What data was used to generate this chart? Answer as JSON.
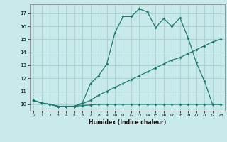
{
  "xlabel": "Humidex (Indice chaleur)",
  "background_color": "#c8eaea",
  "grid_color": "#add4d4",
  "line_color": "#1e7872",
  "xlim": [
    -0.5,
    23.5
  ],
  "ylim": [
    9.5,
    17.7
  ],
  "yticks": [
    10,
    11,
    12,
    13,
    14,
    15,
    16,
    17
  ],
  "xticks": [
    0,
    1,
    2,
    3,
    4,
    5,
    6,
    7,
    8,
    9,
    10,
    11,
    12,
    13,
    14,
    15,
    16,
    17,
    18,
    19,
    20,
    21,
    22,
    23
  ],
  "line1_x": [
    0,
    1,
    2,
    3,
    4,
    5,
    6,
    7,
    8,
    9,
    10,
    11,
    12,
    13,
    14,
    15,
    16,
    17,
    18,
    19,
    20,
    21,
    22,
    23
  ],
  "line1_y": [
    10.3,
    10.1,
    10.0,
    9.85,
    9.85,
    9.85,
    10.1,
    11.6,
    12.2,
    13.1,
    15.5,
    16.75,
    16.75,
    17.35,
    17.1,
    15.9,
    16.6,
    16.0,
    16.65,
    15.1,
    13.2,
    11.8,
    10.0,
    10.0
  ],
  "line2_x": [
    0,
    1,
    2,
    3,
    4,
    5,
    6,
    7,
    8,
    9,
    10,
    11,
    12,
    13,
    14,
    15,
    16,
    17,
    18,
    19,
    20,
    21,
    22,
    23
  ],
  "line2_y": [
    10.3,
    10.1,
    10.0,
    9.85,
    9.85,
    9.85,
    10.05,
    10.3,
    10.7,
    11.0,
    11.3,
    11.6,
    11.9,
    12.2,
    12.5,
    12.8,
    13.1,
    13.4,
    13.6,
    13.9,
    14.2,
    14.5,
    14.8,
    15.0
  ],
  "line3_x": [
    0,
    1,
    2,
    3,
    4,
    5,
    6,
    7,
    8,
    9,
    10,
    11,
    12,
    13,
    14,
    15,
    16,
    17,
    18,
    19,
    20,
    21,
    22,
    23
  ],
  "line3_y": [
    10.3,
    10.1,
    10.0,
    9.85,
    9.85,
    9.85,
    9.9,
    9.95,
    10.0,
    10.0,
    10.0,
    10.0,
    10.0,
    10.0,
    10.0,
    10.0,
    10.0,
    10.0,
    10.0,
    10.0,
    10.0,
    10.0,
    10.0,
    10.0
  ]
}
